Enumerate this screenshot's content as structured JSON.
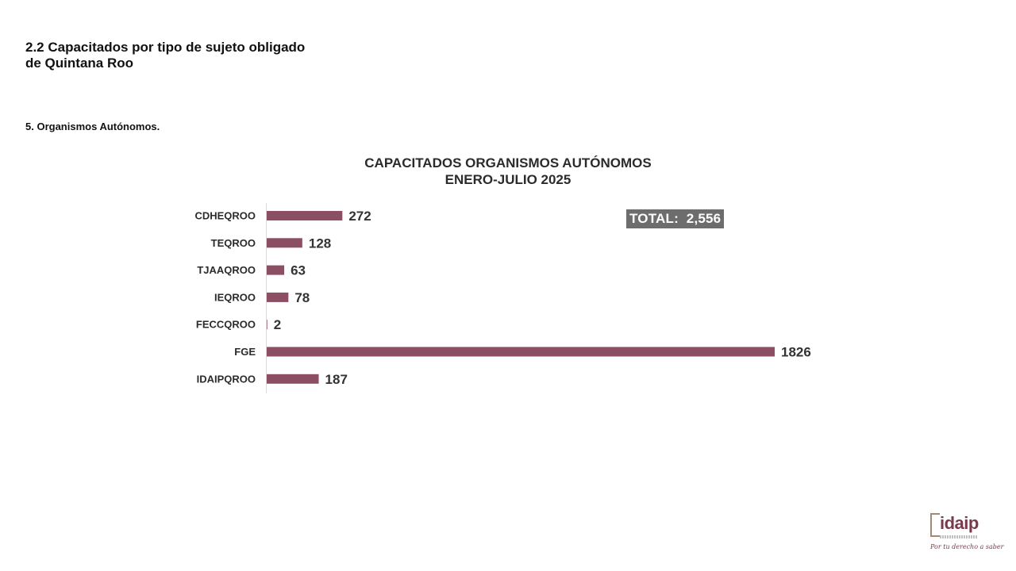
{
  "page": {
    "section_title": "2.2 Capacitados por tipo de sujeto obligado de Quintana Roo",
    "subsection": "5. Organismos Autónomos."
  },
  "chart_data": {
    "type": "bar",
    "orientation": "horizontal",
    "title": "CAPACITADOS ORGANISMOS AUTÓNOMOS",
    "subtitle": "ENERO-JULIO 2025",
    "categories": [
      "CDHEQROO",
      "TEQROO",
      "TJAAQROO",
      "IEQROO",
      "FECCQROO",
      "FGE",
      "IDAIPQROO"
    ],
    "values": [
      272,
      128,
      63,
      78,
      2,
      1826,
      187
    ],
    "xlim": [
      0,
      1826
    ],
    "grid": false,
    "legend": "none",
    "bar_color": "#8b4e62",
    "annotation": "TOTAL:  2,556"
  },
  "logo": {
    "name": "idaip",
    "slogan": "Por tu derecho a saber",
    "color": "#7a3a4c"
  }
}
